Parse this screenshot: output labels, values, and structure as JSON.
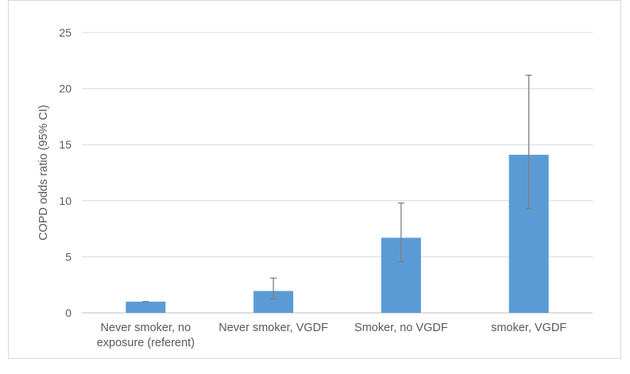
{
  "chart_data": {
    "type": "bar",
    "title": "",
    "xlabel": "",
    "ylabel": "COPD odds ratio (95% CI)",
    "ylim": [
      0,
      25
    ],
    "yticks": [
      0,
      5,
      10,
      15,
      20,
      25
    ],
    "ytick_labels": [
      "0",
      "5",
      "10",
      "15",
      "20",
      "25"
    ],
    "grid": true,
    "legend": "none",
    "bar_color": "#5b9bd5",
    "error_bar_color": "#7f7f7f",
    "categories": [
      [
        "Never smoker, no",
        "exposure (referent)"
      ],
      [
        "Never smoker, VGDF"
      ],
      [
        "Smoker, no VGDF"
      ],
      [
        "smoker, VGDF"
      ]
    ],
    "values": [
      1.0,
      1.95,
      6.7,
      14.1
    ],
    "ci_low": [
      1.0,
      1.25,
      4.55,
      9.3
    ],
    "ci_high": [
      1.0,
      3.1,
      9.8,
      21.2
    ]
  }
}
